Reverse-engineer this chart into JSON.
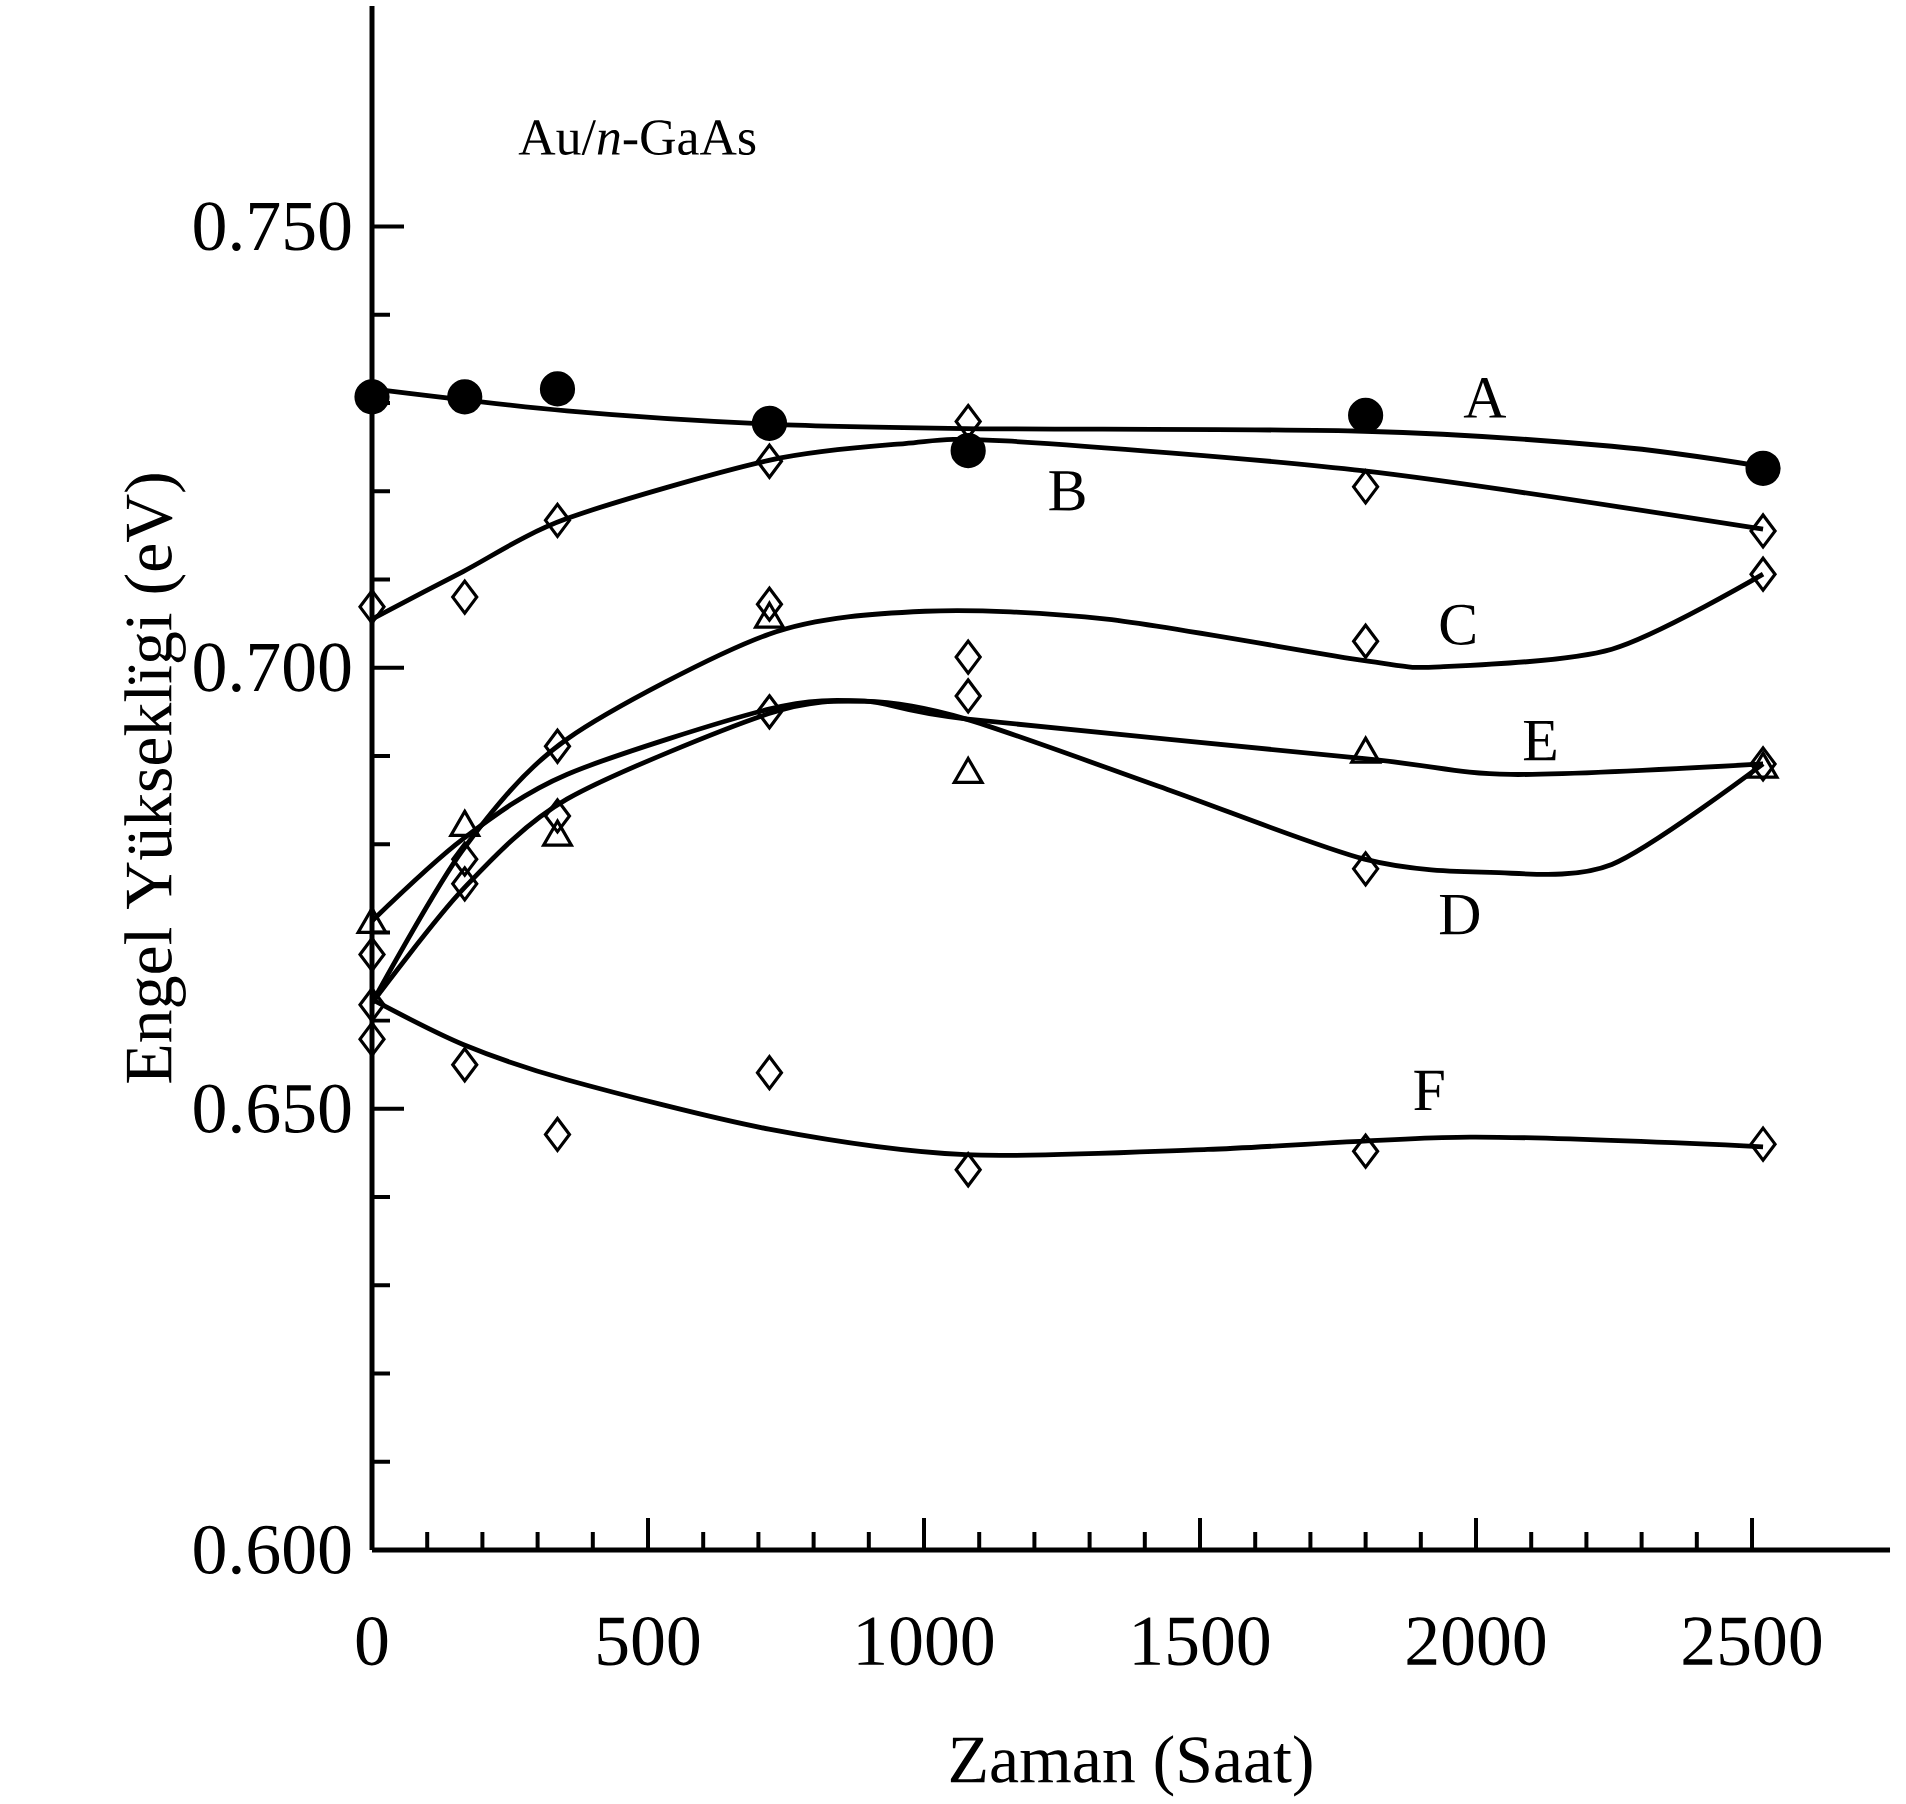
{
  "chart_data": {
    "type": "scatter",
    "title": "Au/*n*-GaAs",
    "xlabel": "Zaman (Saat)",
    "ylabel": "Engel Yükseklïgi (eV)",
    "x": [
      0,
      168,
      336,
      720,
      1080,
      1800,
      2520
    ],
    "xlim": [
      0,
      2750
    ],
    "xticks": [
      0,
      500,
      1000,
      1500,
      2000,
      2500
    ],
    "ylim": [
      0.6,
      0.775
    ],
    "yticks": [
      {
        "value": 0.6,
        "label": "0.600"
      },
      {
        "value": 0.65,
        "label": "0.650"
      },
      {
        "value": 0.7,
        "label": "0.700"
      },
      {
        "value": 0.75,
        "label": "0.750"
      }
    ],
    "series": [
      {
        "marker": "circle",
        "color": "#000000",
        "values": [
          0.7307,
          0.7307,
          0.7316,
          0.7277,
          0.7246,
          0.7286,
          0.7226
        ]
      },
      {
        "marker": "diamond",
        "color": "#000000",
        "values": [
          0.7069,
          0.708,
          0.7167,
          0.7234,
          0.7279,
          0.7205,
          0.7155
        ]
      },
      {
        "marker": "diamond",
        "color": "#000000",
        "values": [
          0.6618,
          0.6783,
          0.6911,
          0.7072,
          0.7012,
          0.703,
          0.7106
        ]
      },
      {
        "marker": "diamond",
        "color": "#000000",
        "values": [
          0.6675,
          0.6755,
          0.6832,
          0.695,
          0.6968,
          0.6772,
          0.6891
        ]
      },
      {
        "marker": "triangle",
        "color": "#000000",
        "values": [
          0.6709,
          0.6819,
          0.6808,
          0.7055,
          0.6879,
          0.6902,
          0.6885
        ]
      },
      {
        "marker": "diamond",
        "color": "#000000",
        "values": [
          0.6579,
          0.655,
          0.6471,
          0.6541,
          0.6431,
          0.6452,
          0.646
        ]
      },
      {
        "type": "line",
        "name": "A",
        "line_style": "solid",
        "color": "#000000",
        "x": [
          0,
          353,
          719,
          1075,
          1798,
          2246,
          2520
        ],
        "values": [
          0.7316,
          0.7291,
          0.7276,
          0.7271,
          0.7268,
          0.7251,
          0.7228
        ]
      },
      {
        "type": "line",
        "name": "B",
        "line_style": "solid",
        "color": "#000000",
        "x": [
          0,
          165,
          353,
          719,
          965,
          1148,
          1798,
          2520
        ],
        "values": [
          0.7055,
          0.7109,
          0.7169,
          0.7235,
          0.7254,
          0.7257,
          0.7223,
          0.7157
        ]
      },
      {
        "type": "line",
        "name": "C",
        "line_style": "solid",
        "color": "#000000",
        "x": [
          0,
          165,
          353,
          719,
          1002,
          1331,
          1798,
          1935,
          2246,
          2520
        ],
        "values": [
          0.662,
          0.6794,
          0.6919,
          0.7038,
          0.7064,
          0.7055,
          0.7008,
          0.7001,
          0.7021,
          0.7106
        ]
      },
      {
        "type": "line",
        "name": "D",
        "line_style": "solid",
        "color": "#000000",
        "x": [
          0,
          165,
          353,
          719,
          892,
          1075,
          1441,
          1798,
          2026,
          2246,
          2520
        ],
        "values": [
          0.662,
          0.6749,
          0.6851,
          0.6948,
          0.6962,
          0.6942,
          0.6862,
          0.6783,
          0.6768,
          0.6777,
          0.6891
        ]
      },
      {
        "type": "line",
        "name": "E",
        "line_style": "solid",
        "color": "#000000",
        "x": [
          0,
          165,
          353,
          719,
          892,
          1075,
          1798,
          2063,
          2520
        ],
        "values": [
          0.6713,
          0.6806,
          0.6879,
          0.6953,
          0.6962,
          0.6942,
          0.6897,
          0.6879,
          0.6891
        ]
      },
      {
        "type": "line",
        "name": "F",
        "line_style": "solid",
        "color": "#000000",
        "x": [
          0,
          165,
          353,
          719,
          1075,
          1514,
          1989,
          2520
        ],
        "values": [
          0.6624,
          0.6573,
          0.6533,
          0.6477,
          0.6448,
          0.6454,
          0.6468,
          0.6457
        ]
      }
    ]
  }
}
